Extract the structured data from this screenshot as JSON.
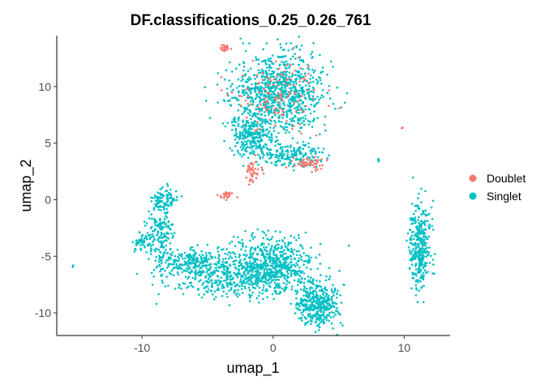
{
  "chart_data": {
    "type": "scatter",
    "title": "DF.classifications_0.25_0.26_761",
    "xlabel": "umap_1",
    "ylabel": "umap_2",
    "xlim": [
      -16.5,
      13.5
    ],
    "ylim": [
      -12,
      14.5
    ],
    "x_ticks": [
      -10,
      0,
      10
    ],
    "y_ticks": [
      -10,
      -5,
      0,
      5,
      10
    ],
    "grid": false,
    "legend_position": "right",
    "series": [
      {
        "name": "Doublet",
        "color": "#F8766D"
      },
      {
        "name": "Singlet",
        "color": "#00BFC4"
      }
    ],
    "clusters": [
      {
        "series": "Singlet",
        "cx": 0.3,
        "cy": 9.3,
        "sx": 1.7,
        "sy": 1.8,
        "n": 900
      },
      {
        "series": "Singlet",
        "cx": -1.6,
        "cy": 5.6,
        "sx": 0.8,
        "sy": 1.1,
        "n": 250
      },
      {
        "series": "Singlet",
        "cx": 1.4,
        "cy": 4.0,
        "sx": 1.4,
        "sy": 0.5,
        "n": 180
      },
      {
        "series": "Singlet",
        "cx": 0.1,
        "cy": -5.6,
        "sx": 1.5,
        "sy": 1.2,
        "n": 500
      },
      {
        "series": "Singlet",
        "cx": -3.0,
        "cy": -6.7,
        "sx": 2.6,
        "sy": 0.9,
        "n": 550
      },
      {
        "series": "Singlet",
        "cx": -6.5,
        "cy": -5.4,
        "sx": 1.2,
        "sy": 0.5,
        "n": 160
      },
      {
        "series": "Singlet",
        "cx": -8.6,
        "cy": -3.0,
        "sx": 0.5,
        "sy": 1.4,
        "n": 160
      },
      {
        "series": "Singlet",
        "cx": -8.3,
        "cy": 0.0,
        "sx": 0.5,
        "sy": 0.5,
        "n": 90
      },
      {
        "series": "Singlet",
        "cx": -10.0,
        "cy": -3.8,
        "sx": 0.5,
        "sy": 0.4,
        "n": 50
      },
      {
        "series": "Singlet",
        "cx": 3.4,
        "cy": -9.3,
        "sx": 0.8,
        "sy": 0.9,
        "n": 380
      },
      {
        "series": "Singlet",
        "cx": 11.2,
        "cy": -4.0,
        "sx": 0.4,
        "sy": 1.9,
        "n": 330
      },
      {
        "series": "Singlet",
        "cx": 8.0,
        "cy": 3.5,
        "sx": 0.08,
        "sy": 0.08,
        "n": 6
      },
      {
        "series": "Singlet",
        "cx": -15.3,
        "cy": -5.9,
        "sx": 0.04,
        "sy": 0.04,
        "n": 2
      },
      {
        "series": "Doublet",
        "cx": 0.3,
        "cy": 9.3,
        "sx": 1.6,
        "sy": 1.8,
        "n": 130
      },
      {
        "series": "Doublet",
        "cx": -3.7,
        "cy": 13.4,
        "sx": 0.2,
        "sy": 0.15,
        "n": 25
      },
      {
        "series": "Doublet",
        "cx": -1.6,
        "cy": 2.4,
        "sx": 0.3,
        "sy": 0.4,
        "n": 45
      },
      {
        "series": "Doublet",
        "cx": -3.6,
        "cy": 0.4,
        "sx": 0.3,
        "sy": 0.15,
        "n": 28
      },
      {
        "series": "Doublet",
        "cx": 2.6,
        "cy": 3.2,
        "sx": 0.6,
        "sy": 0.3,
        "n": 55
      },
      {
        "series": "Doublet",
        "cx": 9.9,
        "cy": 6.3,
        "sx": 0.04,
        "sy": 0.04,
        "n": 2
      }
    ]
  }
}
